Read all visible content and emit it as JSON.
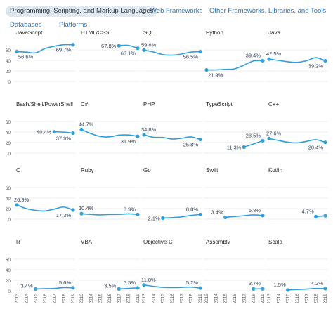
{
  "tabs": [
    {
      "label": "Programming, Scripting, and Markup Languages",
      "active": true
    },
    {
      "label": "Web Frameworks",
      "active": false
    },
    {
      "label": "Other Frameworks, Libraries, and Tools",
      "active": false
    },
    {
      "label": "Databases",
      "active": false
    },
    {
      "label": "Platforms",
      "active": false
    }
  ],
  "colors": {
    "line": "#2e9fd8",
    "grid": "#e6e6e6",
    "axis": "#555555",
    "active_tab_bg": "#e2e8ef",
    "tab_text": "#1f74c4"
  },
  "chart_data": {
    "type": "line",
    "x": [
      "2013",
      "2014",
      "2015",
      "2016",
      "2017",
      "2018",
      "2019"
    ],
    "ylim": [
      0,
      80
    ],
    "yticks": [
      0,
      20,
      40,
      60
    ],
    "grid": true,
    "panels": [
      {
        "title": "JavaScript",
        "x": [
          "2013",
          "2014",
          "2015",
          "2016",
          "2017",
          "2018",
          "2019"
        ],
        "values": [
          56.6,
          55.8,
          54.4,
          62.5,
          66.8,
          69.8,
          69.7
        ],
        "labels": [
          {
            "index": 0,
            "text": "56.6%",
            "pos": "below"
          },
          {
            "index": 6,
            "text": "69.7%",
            "pos": "below-left"
          }
        ]
      },
      {
        "title": "HTML/CSS",
        "x": [
          "2017",
          "2018",
          "2019"
        ],
        "values": [
          67.8,
          68.5,
          63.1
        ],
        "labels": [
          {
            "index": 0,
            "text": "67.8%",
            "pos": "left"
          },
          {
            "index": 2,
            "text": "63.1%",
            "pos": "below-left"
          }
        ]
      },
      {
        "title": "SQL",
        "x": [
          "2013",
          "2014",
          "2015",
          "2016",
          "2017",
          "2018",
          "2019"
        ],
        "values": [
          59.6,
          56.0,
          51.0,
          50.0,
          52.0,
          55.8,
          56.5
        ],
        "labels": [
          {
            "index": 0,
            "text": "59.6%",
            "pos": "above"
          },
          {
            "index": 6,
            "text": "56.5%",
            "pos": "below-left"
          }
        ]
      },
      {
        "title": "Python",
        "x": [
          "2013",
          "2014",
          "2015",
          "2016",
          "2017",
          "2018",
          "2019"
        ],
        "values": [
          21.9,
          22.0,
          23.0,
          24.0,
          31.0,
          38.8,
          39.4
        ],
        "labels": [
          {
            "index": 0,
            "text": "21.9%",
            "pos": "below"
          },
          {
            "index": 6,
            "text": "39.4%",
            "pos": "above-left"
          }
        ]
      },
      {
        "title": "Java",
        "x": [
          "2013",
          "2014",
          "2015",
          "2016",
          "2017",
          "2018",
          "2019"
        ],
        "values": [
          42.5,
          40.0,
          37.4,
          36.3,
          39.3,
          45.3,
          39.2
        ],
        "labels": [
          {
            "index": 0,
            "text": "42.5%",
            "pos": "above"
          },
          {
            "index": 6,
            "text": "39.2%",
            "pos": "below-left"
          }
        ]
      },
      {
        "title": "Bash/Shell/PowerShell",
        "x": [
          "2017",
          "2018",
          "2019"
        ],
        "values": [
          40.4,
          39.8,
          37.9
        ],
        "labels": [
          {
            "index": 0,
            "text": "40.4%",
            "pos": "left"
          },
          {
            "index": 2,
            "text": "37.9%",
            "pos": "below-left"
          }
        ]
      },
      {
        "title": "C#",
        "x": [
          "2013",
          "2014",
          "2015",
          "2016",
          "2017",
          "2018",
          "2019"
        ],
        "values": [
          44.7,
          37.0,
          31.5,
          30.9,
          34.1,
          34.4,
          31.9
        ],
        "labels": [
          {
            "index": 0,
            "text": "44.7%",
            "pos": "above"
          },
          {
            "index": 6,
            "text": "31.9%",
            "pos": "below-left"
          }
        ]
      },
      {
        "title": "PHP",
        "x": [
          "2013",
          "2014",
          "2015",
          "2016",
          "2017",
          "2018",
          "2019"
        ],
        "values": [
          34.8,
          30.0,
          29.7,
          26.7,
          28.1,
          30.7,
          25.8
        ],
        "labels": [
          {
            "index": 0,
            "text": "34.8%",
            "pos": "above"
          },
          {
            "index": 6,
            "text": "25.8%",
            "pos": "below-left"
          }
        ]
      },
      {
        "title": "TypeScript",
        "x": [
          "2017",
          "2018",
          "2019"
        ],
        "values": [
          11.3,
          17.4,
          23.5
        ],
        "labels": [
          {
            "index": 0,
            "text": "11.3%",
            "pos": "left"
          },
          {
            "index": 2,
            "text": "23.5%",
            "pos": "above-left"
          }
        ]
      },
      {
        "title": "C++",
        "x": [
          "2013",
          "2014",
          "2015",
          "2016",
          "2017",
          "2018",
          "2019"
        ],
        "values": [
          27.6,
          24.0,
          20.6,
          19.4,
          22.3,
          25.4,
          20.4
        ],
        "labels": [
          {
            "index": 0,
            "text": "27.6%",
            "pos": "above"
          },
          {
            "index": 6,
            "text": "20.4%",
            "pos": "below-left"
          }
        ]
      },
      {
        "title": "C",
        "x": [
          "2013",
          "2014",
          "2015",
          "2016",
          "2017",
          "2018",
          "2019"
        ],
        "values": [
          26.9,
          20.0,
          16.6,
          15.5,
          19.0,
          23.0,
          17.3
        ],
        "labels": [
          {
            "index": 0,
            "text": "26.9%",
            "pos": "above"
          },
          {
            "index": 6,
            "text": "17.3%",
            "pos": "below-left"
          }
        ]
      },
      {
        "title": "Ruby",
        "x": [
          "2013",
          "2014",
          "2015",
          "2016",
          "2017",
          "2018",
          "2019"
        ],
        "values": [
          10.4,
          9.0,
          8.1,
          8.9,
          9.0,
          10.1,
          8.9
        ],
        "labels": [
          {
            "index": 0,
            "text": "10.4%",
            "pos": "above"
          },
          {
            "index": 6,
            "text": "8.9%",
            "pos": "above-left"
          }
        ]
      },
      {
        "title": "Go",
        "x": [
          "2015",
          "2016",
          "2017",
          "2018",
          "2019"
        ],
        "values": [
          2.1,
          2.9,
          4.3,
          7.1,
          8.8
        ],
        "labels": [
          {
            "index": 0,
            "text": "2.1%",
            "pos": "left"
          },
          {
            "index": 4,
            "text": "8.8%",
            "pos": "above-left"
          }
        ]
      },
      {
        "title": "Swift",
        "x": [
          "2015",
          "2016",
          "2017",
          "2018",
          "2019"
        ],
        "values": [
          3.4,
          5.0,
          6.5,
          8.1,
          6.8
        ],
        "labels": [
          {
            "index": 0,
            "text": "3.4%",
            "pos": "above-left"
          },
          {
            "index": 4,
            "text": "6.8%",
            "pos": "above-left"
          }
        ]
      },
      {
        "title": "Kotlin",
        "x": [
          "2018",
          "2019"
        ],
        "values": [
          4.7,
          6.4
        ],
        "labels": [
          {
            "index": 0,
            "text": "4.7%",
            "pos": "above-left"
          }
        ]
      },
      {
        "title": "R",
        "x": [
          "2015",
          "2016",
          "2017",
          "2018",
          "2019"
        ],
        "values": [
          3.4,
          4.0,
          4.5,
          6.1,
          5.6
        ],
        "labels": [
          {
            "index": 0,
            "text": "3.4%",
            "pos": "left-above"
          },
          {
            "index": 4,
            "text": "5.6%",
            "pos": "above-left"
          }
        ]
      },
      {
        "title": "VBA",
        "x": [
          "2017",
          "2018",
          "2019"
        ],
        "values": [
          3.5,
          4.5,
          5.5
        ],
        "labels": [
          {
            "index": 0,
            "text": "3.5%",
            "pos": "left-above"
          },
          {
            "index": 2,
            "text": "5.5%",
            "pos": "above-left"
          }
        ]
      },
      {
        "title": "Objective-C",
        "x": [
          "2013",
          "2014",
          "2015",
          "2016",
          "2017",
          "2018",
          "2019"
        ],
        "values": [
          11.0,
          8.5,
          6.5,
          6.0,
          6.4,
          7.0,
          5.2
        ],
        "labels": [
          {
            "index": 0,
            "text": "11.0%",
            "pos": "above"
          },
          {
            "index": 6,
            "text": "5.2%",
            "pos": "above-left"
          }
        ]
      },
      {
        "title": "Assembly",
        "x": [
          "2018",
          "2019"
        ],
        "values": [
          3.5,
          3.7
        ],
        "labels": [
          {
            "index": 1,
            "text": "3.7%",
            "pos": "above-left"
          }
        ]
      },
      {
        "title": "Scala",
        "x": [
          "2015",
          "2016",
          "2017",
          "2018",
          "2019"
        ],
        "values": [
          1.5,
          2.5,
          3.2,
          4.4,
          4.2
        ],
        "labels": [
          {
            "index": 0,
            "text": "1.5%",
            "pos": "above-left"
          },
          {
            "index": 4,
            "text": "4.2%",
            "pos": "above-left"
          }
        ]
      }
    ]
  }
}
